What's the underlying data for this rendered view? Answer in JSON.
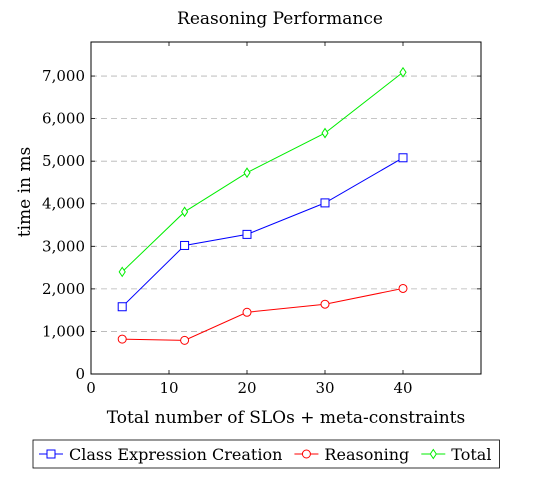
{
  "chart_data": {
    "type": "line",
    "title": "Reasoning Performance",
    "xlabel": "Total number of SLOs + meta-constraints",
    "ylabel": "time in ms",
    "xlim": [
      0,
      50
    ],
    "ylim": [
      0,
      7800
    ],
    "xticks": [
      0,
      10,
      20,
      30,
      40
    ],
    "xtick_labels": [
      "0",
      "10",
      "20",
      "30",
      "40"
    ],
    "yticks": [
      0,
      1000,
      2000,
      3000,
      4000,
      5000,
      6000,
      7000
    ],
    "ytick_labels": [
      "0",
      "1,000",
      "2,000",
      "3,000",
      "4,000",
      "5,000",
      "6,000",
      "7,000"
    ],
    "grid": "horizontal-dashed",
    "legend_position": "bottom",
    "x": [
      4,
      12,
      20,
      30,
      40
    ],
    "series": [
      {
        "name": "Class Expression Creation",
        "color": "#0000ff",
        "marker": "square",
        "values": [
          1580,
          3020,
          3280,
          4020,
          5080
        ]
      },
      {
        "name": "Reasoning",
        "color": "#ff0000",
        "marker": "circle",
        "values": [
          820,
          790,
          1450,
          1640,
          2010
        ]
      },
      {
        "name": "Total",
        "color": "#00ee00",
        "marker": "diamond",
        "values": [
          2400,
          3810,
          4730,
          5660,
          7090
        ]
      }
    ]
  }
}
